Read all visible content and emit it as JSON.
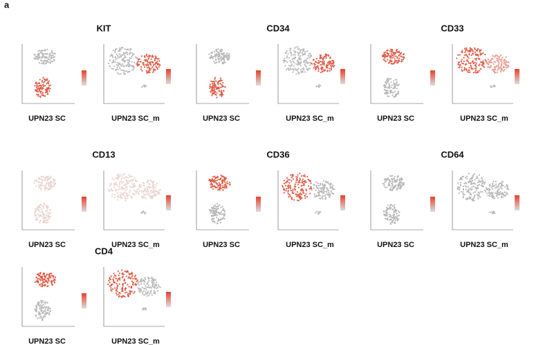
{
  "panel_label": "a",
  "genes": [
    {
      "title": "KIT",
      "plots": [
        {
          "label": "UPN23 SC"
        },
        {
          "label": "UPN23 SC_m"
        }
      ]
    },
    {
      "title": "CD34",
      "plots": [
        {
          "label": "UPN23 SC"
        },
        {
          "label": "UPN23 SC_m"
        }
      ]
    },
    {
      "title": "CD33",
      "plots": [
        {
          "label": "UPN23 SC"
        },
        {
          "label": "UPN23 SC_m"
        }
      ]
    },
    {
      "title": "CD13",
      "plots": [
        {
          "label": "UPN23 SC"
        },
        {
          "label": "UPN23 SC_m"
        }
      ]
    },
    {
      "title": "CD36",
      "plots": [
        {
          "label": "UPN23 SC"
        },
        {
          "label": "UPN23 SC_m"
        }
      ]
    },
    {
      "title": "CD64",
      "plots": [
        {
          "label": "UPN23 SC"
        },
        {
          "label": "UPN23 SC_m"
        }
      ]
    },
    {
      "title": "CD4",
      "plots": [
        {
          "label": "UPN23 SC"
        },
        {
          "label": "UPN23 SC_m"
        }
      ]
    }
  ]
}
